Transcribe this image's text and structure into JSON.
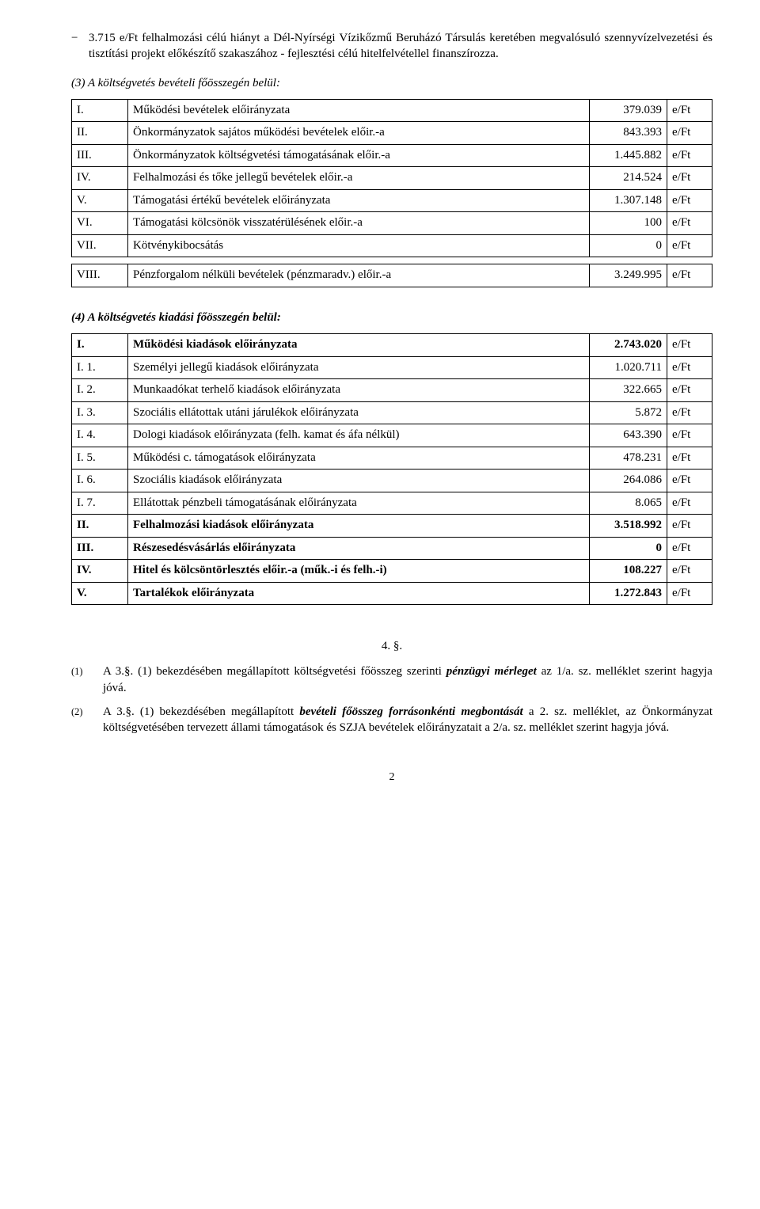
{
  "bullet": {
    "dash": "−",
    "text": "3.715 e/Ft felhalmozási célú hiányt a Dél-Nyírségi Vízikőzmű Beruházó Társulás keretében megvalósuló szennyvízelvezetési és tisztítási projekt előkészítő szakaszához - fejlesztési célú hitelfelvétellel finanszírozza."
  },
  "section3_head": "(3) A költségvetés bevételi főösszegén belül:",
  "table3": {
    "rows": [
      {
        "num": "I.",
        "desc": "Működési bevételek előirányzata",
        "val": "379.039",
        "unit": "e/Ft"
      },
      {
        "num": "II.",
        "desc": "Önkormányzatok sajátos működési bevételek előir.-a",
        "val": "843.393",
        "unit": "e/Ft"
      },
      {
        "num": "III.",
        "desc": "Önkormányzatok költségvetési támogatásának előir.-a",
        "val": "1.445.882",
        "unit": "e/Ft"
      },
      {
        "num": "IV.",
        "desc": "Felhalmozási és tőke jellegű bevételek előir.-a",
        "val": "214.524",
        "unit": "e/Ft"
      },
      {
        "num": "V.",
        "desc": "Támogatási értékű bevételek előirányzata",
        "val": "1.307.148",
        "unit": "e/Ft"
      },
      {
        "num": "VI.",
        "desc": "Támogatási kölcsönök visszatérülésének előir.-a",
        "val": "100",
        "unit": "e/Ft"
      },
      {
        "num": "VII.",
        "desc": "Kötvénykibocsátás",
        "val": "0",
        "unit": "e/Ft"
      }
    ],
    "rows_b": [
      {
        "num": "VIII.",
        "desc": "Pénzforgalom nélküli bevételek (pénzmaradv.) előir.-a",
        "val": "3.249.995",
        "unit": "e/Ft"
      }
    ]
  },
  "section4_head": "(4) A költségvetés kiadási főösszegén belül:",
  "table4": {
    "rows": [
      {
        "num": "I.",
        "desc": "Működési kiadások előirányzata",
        "val": "2.743.020",
        "unit": "e/Ft",
        "bold": true
      },
      {
        "num": "I. 1.",
        "desc": "Személyi jellegű kiadások előirányzata",
        "val": "1.020.711",
        "unit": "e/Ft"
      },
      {
        "num": "I. 2.",
        "desc": "Munkaadókat terhelő kiadások előirányzata",
        "val": "322.665",
        "unit": "e/Ft"
      },
      {
        "num": "I. 3.",
        "desc": "Szociális ellátottak utáni járulékok előirányzata",
        "val": "5.872",
        "unit": "e/Ft"
      },
      {
        "num": "I. 4.",
        "desc": "Dologi kiadások előirányzata (felh. kamat és áfa nélkül)",
        "val": "643.390",
        "unit": "e/Ft"
      },
      {
        "num": "I. 5.",
        "desc": "Működési c. támogatások előirányzata",
        "val": "478.231",
        "unit": "e/Ft"
      },
      {
        "num": "I. 6.",
        "desc": "Szociális kiadások előirányzata",
        "val": "264.086",
        "unit": "e/Ft"
      },
      {
        "num": "I. 7.",
        "desc": "Ellátottak pénzbeli támogatásának előirányzata",
        "val": "8.065",
        "unit": "e/Ft"
      },
      {
        "num": "II.",
        "desc": "Felhalmozási kiadások előirányzata",
        "val": "3.518.992",
        "unit": "e/Ft",
        "bold": true
      },
      {
        "num": "III.",
        "desc": "Részesedésvásárlás előirányzata",
        "val": "0",
        "unit": "e/Ft",
        "bold": true
      },
      {
        "num": "IV.",
        "desc": "Hitel és kölcsöntörlesztés előir.-a (műk.-i és felh.-i)",
        "val": "108.227",
        "unit": "e/Ft",
        "bold": true
      },
      {
        "num": "V.",
        "desc": "Tartalékok előirányzata",
        "val": "1.272.843",
        "unit": "e/Ft",
        "bold": true
      }
    ]
  },
  "section4_title": "4. §.",
  "para1": {
    "num": "(1)",
    "body_a": "A 3.§. (1) bekezdésében megállapított költségvetési főösszeg szerinti ",
    "body_b": "pénzügyi mérleget",
    "body_c": " az 1/a. sz. melléklet szerint hagyja jóvá."
  },
  "para2": {
    "num": "(2)",
    "body_a": "A 3.§. (1) bekezdésében megállapított ",
    "body_b": "bevételi főösszeg forrásonkénti megbontását",
    "body_c": " a 2. sz. melléklet, az Önkormányzat költségvetésében tervezett állami támogatások és SZJA bevételek előirányzatait a 2/a. sz. melléklet szerint hagyja jóvá."
  },
  "pagenum": "2"
}
